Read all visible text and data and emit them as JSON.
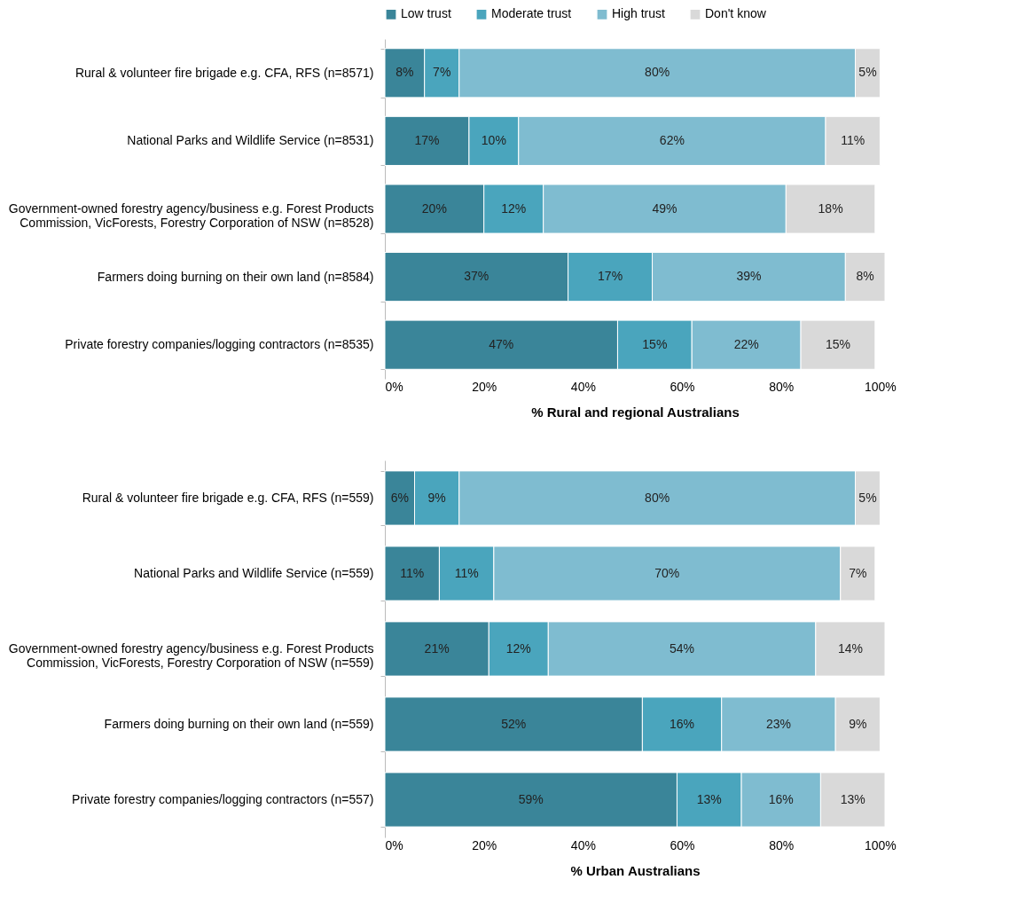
{
  "chart_data": [
    {
      "type": "bar",
      "orientation": "horizontal",
      "stacked": true,
      "legend": "top",
      "grid": false,
      "xlabel": "% Rural and regional Australians",
      "categories": [
        "Rural & volunteer fire brigade e.g. CFA, RFS (n=8571)",
        "National Parks and Wildlife Service (n=8531)",
        "Government-owned forestry agency/business e.g. Forest Products\nCommission, VicForests, Forestry Corporation of NSW (n=8528)",
        "Farmers doing burning on their own land (n=8584)",
        "Private forestry companies/logging contractors (n=8535)"
      ],
      "xlim": [
        0,
        101
      ],
      "xticks": [
        {
          "value": 0,
          "label": "0%"
        },
        {
          "value": 20,
          "label": "20%"
        },
        {
          "value": 40,
          "label": "40%"
        },
        {
          "value": 60,
          "label": "60%"
        },
        {
          "value": 80,
          "label": "80%"
        },
        {
          "value": 100,
          "label": "100%"
        }
      ],
      "series": [
        {
          "name": "Low trust",
          "color": "#3a8599",
          "values": [
            8,
            17,
            20,
            37,
            47
          ],
          "value_labels": [
            "8%",
            "17%",
            "20%",
            "37%",
            "47%"
          ]
        },
        {
          "name": "Moderate trust",
          "color": "#4aa5bd",
          "values": [
            7,
            10,
            12,
            17,
            15
          ],
          "value_labels": [
            "7%",
            "10%",
            "12%",
            "17%",
            "15%"
          ]
        },
        {
          "name": "High trust",
          "color": "#7fbcd0",
          "values": [
            80,
            62,
            49,
            39,
            22
          ],
          "value_labels": [
            "80%",
            "62%",
            "49%",
            "39%",
            "22%"
          ]
        },
        {
          "name": "Don't know",
          "color": "#d9d9d9",
          "values": [
            5,
            11,
            18,
            8,
            15
          ],
          "value_labels": [
            "5%",
            "11%",
            "18%",
            "8%",
            "15%"
          ]
        }
      ]
    },
    {
      "type": "bar",
      "orientation": "horizontal",
      "stacked": true,
      "grid": false,
      "xlabel": "% Urban Australians",
      "categories": [
        "Rural & volunteer fire brigade e.g. CFA, RFS (n=559)",
        "National Parks and Wildlife Service (n=559)",
        "Government-owned forestry agency/business e.g. Forest Products\nCommission, VicForests, Forestry Corporation of NSW (n=559)",
        "Farmers doing burning on their own land (n=559)",
        "Private forestry companies/logging contractors (n=557)"
      ],
      "xlim": [
        0,
        101
      ],
      "xticks": [
        {
          "value": 0,
          "label": "0%"
        },
        {
          "value": 20,
          "label": "20%"
        },
        {
          "value": 40,
          "label": "40%"
        },
        {
          "value": 60,
          "label": "60%"
        },
        {
          "value": 80,
          "label": "80%"
        },
        {
          "value": 100,
          "label": "100%"
        }
      ],
      "series": [
        {
          "color": "#3a8599",
          "values": [
            6,
            11,
            21,
            52,
            59
          ],
          "value_labels": [
            "6%",
            "11%",
            "21%",
            "52%",
            "59%"
          ]
        },
        {
          "color": "#4aa5bd",
          "values": [
            9,
            11,
            12,
            16,
            13
          ],
          "value_labels": [
            "9%",
            "11%",
            "12%",
            "16%",
            "13%"
          ]
        },
        {
          "color": "#7fbcd0",
          "values": [
            80,
            70,
            54,
            23,
            16
          ],
          "value_labels": [
            "80%",
            "70%",
            "54%",
            "23%",
            "16%"
          ]
        },
        {
          "color": "#d9d9d9",
          "values": [
            5,
            7,
            14,
            9,
            13
          ],
          "value_labels": [
            "5%",
            "7%",
            "14%",
            "9%",
            "13%"
          ]
        }
      ]
    }
  ]
}
